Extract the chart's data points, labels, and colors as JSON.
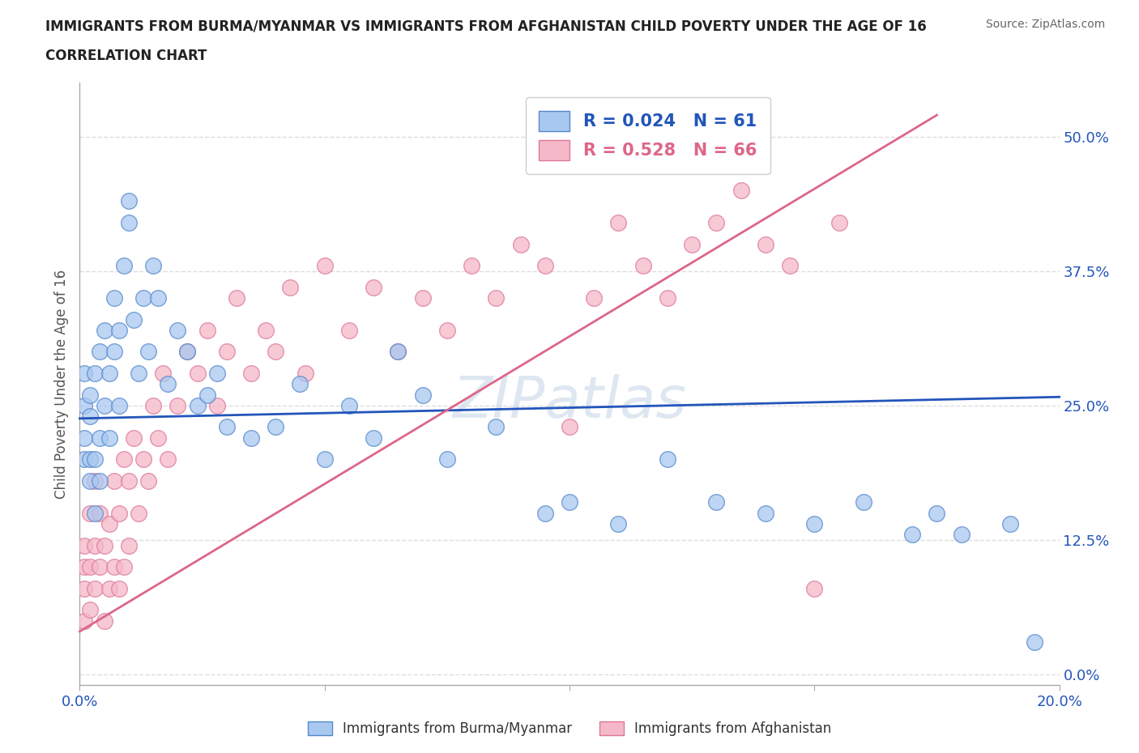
{
  "title": "IMMIGRANTS FROM BURMA/MYANMAR VS IMMIGRANTS FROM AFGHANISTAN CHILD POVERTY UNDER THE AGE OF 16",
  "subtitle": "CORRELATION CHART",
  "source": "Source: ZipAtlas.com",
  "ylabel": "Child Poverty Under the Age of 16",
  "xlim": [
    0.0,
    0.2
  ],
  "ylim": [
    -0.01,
    0.55
  ],
  "ytick_vals": [
    0.0,
    0.125,
    0.25,
    0.375,
    0.5
  ],
  "ytick_labels": [
    "0.0%",
    "12.5%",
    "25.0%",
    "37.5%",
    "50.0%"
  ],
  "xtick_vals": [
    0.0,
    0.05,
    0.1,
    0.15,
    0.2
  ],
  "xtick_labels": [
    "0.0%",
    "",
    "",
    "",
    "20.0%"
  ],
  "watermark": "ZIPatlas",
  "legend_burma_R": "0.024",
  "legend_burma_N": "61",
  "legend_afghan_R": "0.528",
  "legend_afghan_N": "66",
  "color_burma": "#a8c8f0",
  "color_afghan": "#f5b8c8",
  "edge_burma": "#5588cc",
  "edge_afghan": "#dd7799",
  "line_burma": "#2255bb",
  "line_afghan": "#dd6688",
  "grid_color": "#dddddd",
  "burma_x": [
    0.001,
    0.001,
    0.001,
    0.001,
    0.002,
    0.002,
    0.002,
    0.002,
    0.003,
    0.003,
    0.003,
    0.004,
    0.004,
    0.004,
    0.005,
    0.005,
    0.006,
    0.006,
    0.007,
    0.007,
    0.008,
    0.008,
    0.009,
    0.01,
    0.01,
    0.011,
    0.012,
    0.013,
    0.014,
    0.015,
    0.016,
    0.018,
    0.02,
    0.022,
    0.024,
    0.026,
    0.028,
    0.03,
    0.035,
    0.04,
    0.045,
    0.05,
    0.055,
    0.06,
    0.065,
    0.07,
    0.075,
    0.085,
    0.095,
    0.1,
    0.11,
    0.12,
    0.13,
    0.14,
    0.15,
    0.16,
    0.17,
    0.175,
    0.18,
    0.19,
    0.195
  ],
  "burma_y": [
    0.2,
    0.22,
    0.25,
    0.28,
    0.18,
    0.2,
    0.24,
    0.26,
    0.15,
    0.2,
    0.28,
    0.18,
    0.22,
    0.3,
    0.25,
    0.32,
    0.22,
    0.28,
    0.3,
    0.35,
    0.25,
    0.32,
    0.38,
    0.42,
    0.44,
    0.33,
    0.28,
    0.35,
    0.3,
    0.38,
    0.35,
    0.27,
    0.32,
    0.3,
    0.25,
    0.26,
    0.28,
    0.23,
    0.22,
    0.23,
    0.27,
    0.2,
    0.25,
    0.22,
    0.3,
    0.26,
    0.2,
    0.23,
    0.15,
    0.16,
    0.14,
    0.2,
    0.16,
    0.15,
    0.14,
    0.16,
    0.13,
    0.15,
    0.13,
    0.14,
    0.03
  ],
  "afghan_x": [
    0.001,
    0.001,
    0.001,
    0.001,
    0.002,
    0.002,
    0.002,
    0.003,
    0.003,
    0.003,
    0.004,
    0.004,
    0.005,
    0.005,
    0.006,
    0.006,
    0.007,
    0.007,
    0.008,
    0.008,
    0.009,
    0.009,
    0.01,
    0.01,
    0.011,
    0.012,
    0.013,
    0.014,
    0.015,
    0.016,
    0.017,
    0.018,
    0.02,
    0.022,
    0.024,
    0.026,
    0.028,
    0.03,
    0.032,
    0.035,
    0.038,
    0.04,
    0.043,
    0.046,
    0.05,
    0.055,
    0.06,
    0.065,
    0.07,
    0.075,
    0.08,
    0.085,
    0.09,
    0.095,
    0.1,
    0.105,
    0.11,
    0.115,
    0.12,
    0.125,
    0.13,
    0.135,
    0.14,
    0.145,
    0.15,
    0.155
  ],
  "afghan_y": [
    0.05,
    0.08,
    0.1,
    0.12,
    0.06,
    0.1,
    0.15,
    0.08,
    0.12,
    0.18,
    0.1,
    0.15,
    0.05,
    0.12,
    0.08,
    0.14,
    0.1,
    0.18,
    0.08,
    0.15,
    0.1,
    0.2,
    0.12,
    0.18,
    0.22,
    0.15,
    0.2,
    0.18,
    0.25,
    0.22,
    0.28,
    0.2,
    0.25,
    0.3,
    0.28,
    0.32,
    0.25,
    0.3,
    0.35,
    0.28,
    0.32,
    0.3,
    0.36,
    0.28,
    0.38,
    0.32,
    0.36,
    0.3,
    0.35,
    0.32,
    0.38,
    0.35,
    0.4,
    0.38,
    0.23,
    0.35,
    0.42,
    0.38,
    0.35,
    0.4,
    0.42,
    0.45,
    0.4,
    0.38,
    0.08,
    0.42
  ],
  "burma_line_x": [
    0.0,
    0.2
  ],
  "burma_line_y": [
    0.238,
    0.258
  ],
  "afghan_line_x": [
    0.0,
    0.175
  ],
  "afghan_line_y": [
    0.04,
    0.52
  ]
}
